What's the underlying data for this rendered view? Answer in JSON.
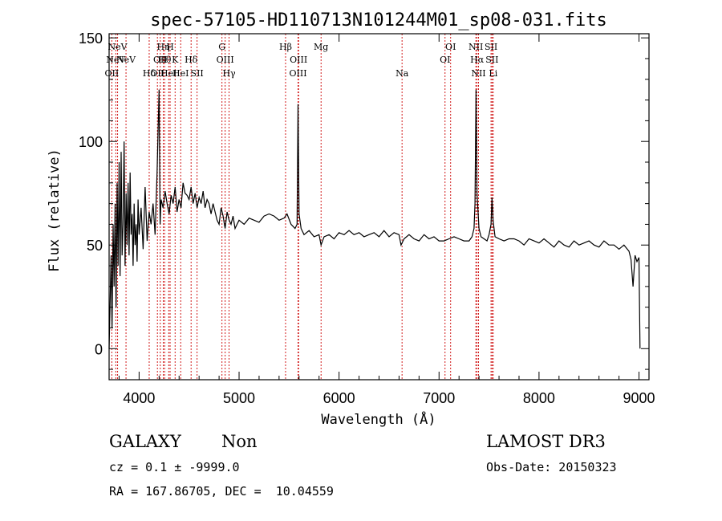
{
  "chart_data": {
    "type": "line",
    "title": "spec-57105-HD110713N101244M01_sp08-031.fits",
    "xlabel": "Wavelength (Å)",
    "ylabel": "Flux (relative)",
    "xlim": [
      3700,
      9100
    ],
    "ylim": [
      -15,
      152
    ],
    "xticks": [
      4000,
      5000,
      6000,
      7000,
      8000,
      9000
    ],
    "yticks": [
      0,
      50,
      100,
      150
    ],
    "series": [
      {
        "name": "flux",
        "x": [
          3700,
          3720,
          3730,
          3740,
          3750,
          3760,
          3770,
          3780,
          3790,
          3800,
          3810,
          3820,
          3830,
          3840,
          3850,
          3860,
          3870,
          3880,
          3890,
          3900,
          3910,
          3920,
          3930,
          3940,
          3950,
          3960,
          3970,
          3980,
          3990,
          4000,
          4020,
          4040,
          4060,
          4080,
          4100,
          4120,
          4140,
          4160,
          4180,
          4200,
          4210,
          4220,
          4240,
          4260,
          4280,
          4300,
          4320,
          4340,
          4360,
          4380,
          4400,
          4420,
          4440,
          4460,
          4480,
          4500,
          4520,
          4540,
          4560,
          4580,
          4600,
          4620,
          4640,
          4660,
          4680,
          4700,
          4720,
          4740,
          4760,
          4780,
          4800,
          4820,
          4840,
          4860,
          4880,
          4900,
          4920,
          4940,
          4960,
          4980,
          5000,
          5050,
          5100,
          5150,
          5200,
          5250,
          5300,
          5350,
          5400,
          5450,
          5480,
          5520,
          5560,
          5580,
          5590,
          5600,
          5620,
          5650,
          5700,
          5750,
          5800,
          5820,
          5850,
          5900,
          5950,
          6000,
          6050,
          6100,
          6150,
          6200,
          6250,
          6300,
          6350,
          6400,
          6450,
          6500,
          6550,
          6600,
          6620,
          6650,
          6700,
          6750,
          6800,
          6850,
          6900,
          6950,
          7000,
          7050,
          7100,
          7150,
          7200,
          7250,
          7300,
          7330,
          7350,
          7360,
          7370,
          7380,
          7400,
          7420,
          7450,
          7480,
          7500,
          7520,
          7530,
          7540,
          7560,
          7600,
          7650,
          7700,
          7750,
          7800,
          7850,
          7900,
          7950,
          8000,
          8050,
          8100,
          8150,
          8200,
          8250,
          8300,
          8350,
          8400,
          8450,
          8500,
          8550,
          8600,
          8650,
          8700,
          8750,
          8800,
          8850,
          8900,
          8920,
          8940,
          8960,
          8980,
          9000,
          9010
        ],
        "values": [
          0,
          45,
          10,
          60,
          30,
          70,
          20,
          80,
          40,
          90,
          35,
          95,
          45,
          60,
          100,
          40,
          75,
          50,
          80,
          45,
          85,
          55,
          65,
          40,
          70,
          50,
          60,
          42,
          72,
          55,
          68,
          48,
          78,
          52,
          66,
          60,
          70,
          55,
          85,
          125,
          60,
          72,
          68,
          76,
          70,
          65,
          74,
          70,
          78,
          66,
          72,
          68,
          80,
          75,
          74,
          72,
          78,
          70,
          75,
          68,
          73,
          70,
          76,
          68,
          72,
          70,
          65,
          70,
          66,
          62,
          60,
          68,
          64,
          58,
          66,
          62,
          60,
          64,
          58,
          60,
          62,
          60,
          63,
          62,
          61,
          64,
          65,
          64,
          62,
          63,
          65,
          60,
          58,
          60,
          118,
          65,
          58,
          55,
          57,
          54,
          55,
          50,
          54,
          55,
          53,
          56,
          55,
          57,
          55,
          56,
          54,
          55,
          56,
          54,
          57,
          54,
          56,
          55,
          50,
          53,
          55,
          53,
          52,
          55,
          53,
          54,
          52,
          52,
          53,
          54,
          53,
          52,
          52,
          54,
          58,
          70,
          125,
          75,
          58,
          54,
          53,
          52,
          55,
          60,
          73,
          62,
          54,
          53,
          52,
          53,
          53,
          52,
          50,
          53,
          52,
          51,
          53,
          51,
          49,
          52,
          50,
          49,
          52,
          50,
          51,
          52,
          50,
          49,
          52,
          50,
          50,
          48,
          50,
          47,
          43,
          30,
          45,
          42,
          44,
          0
        ]
      }
    ],
    "emission_lines": [
      {
        "wavelength": 3727,
        "label": "OII",
        "level": 3
      },
      {
        "wavelength": 3767,
        "label": "NeV",
        "level": 2
      },
      {
        "wavelength": 3785,
        "label": "NeV",
        "level": 1
      },
      {
        "wavelength": 3869,
        "label": "NeV",
        "level": 2
      },
      {
        "wavelength": 4101,
        "label": "Hδ",
        "level": 3
      },
      {
        "wavelength": 4183,
        "label": "OII",
        "level": 3
      },
      {
        "wavelength": 4212,
        "label": "OII",
        "level": 2
      },
      {
        "wavelength": 4242,
        "label": "Hη",
        "level": 1
      },
      {
        "wavelength": 4256,
        "label": "Hθ",
        "level": 2
      },
      {
        "wavelength": 4296,
        "label": "HeI",
        "level": 3
      },
      {
        "wavelength": 4310,
        "label": "H",
        "level": 1
      },
      {
        "wavelength": 4360,
        "label": "K",
        "level": 2
      },
      {
        "wavelength": 4416,
        "label": "HeI",
        "level": 3
      },
      {
        "wavelength": 4520,
        "label": "Hδ",
        "level": 2
      },
      {
        "wavelength": 4580,
        "label": "SII",
        "level": 3
      },
      {
        "wavelength": 4829,
        "label": "G",
        "level": 1
      },
      {
        "wavelength": 4861,
        "label": "OIII",
        "level": 2
      },
      {
        "wavelength": 4900,
        "label": "Hγ",
        "level": 3
      },
      {
        "wavelength": 5465,
        "label": "Hβ",
        "level": 1
      },
      {
        "wavelength": 5595,
        "label": "OIII",
        "level": 2
      },
      {
        "wavelength": 5590,
        "label": "OIII",
        "level": 3
      },
      {
        "wavelength": 5820,
        "label": "Mg",
        "level": 1
      },
      {
        "wavelength": 6630,
        "label": "Na",
        "level": 3
      },
      {
        "wavelength": 7060,
        "label": "OI",
        "level": 2
      },
      {
        "wavelength": 7116,
        "label": "OI",
        "level": 1
      },
      {
        "wavelength": 7368,
        "label": "NII",
        "level": 1
      },
      {
        "wavelength": 7380,
        "label": "Hα",
        "level": 2
      },
      {
        "wavelength": 7395,
        "label": "NII",
        "level": 3
      },
      {
        "wavelength": 7520,
        "label": "SII",
        "level": 1
      },
      {
        "wavelength": 7530,
        "label": "SII",
        "level": 2
      },
      {
        "wavelength": 7542,
        "label": "Li",
        "level": 3
      }
    ]
  },
  "footer": {
    "object_class": "GALAXY",
    "subclass": "Non",
    "survey": "LAMOST DR3",
    "redshift": "cz = 0.1 ± -9999.0",
    "obs_date": "Obs-Date: 20150323",
    "coords": "RA = 167.86705, DEC =  10.04559"
  }
}
